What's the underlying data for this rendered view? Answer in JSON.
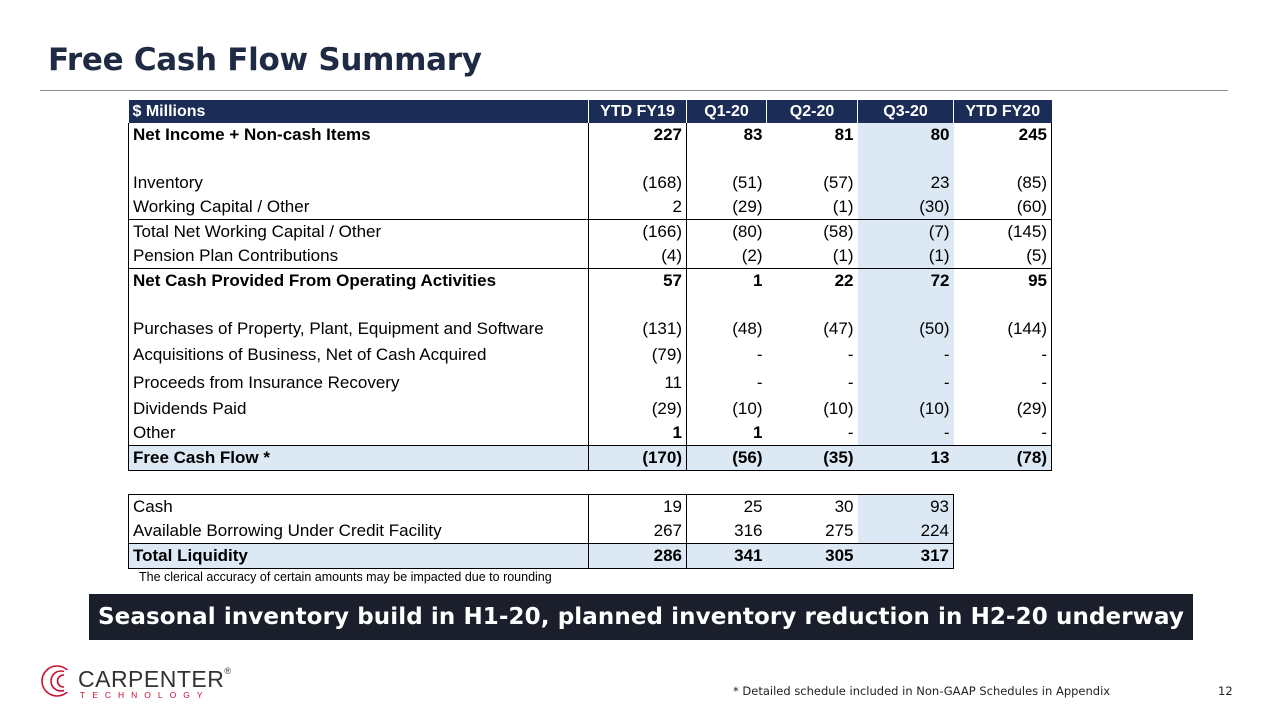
{
  "title": "Free Cash Flow Summary",
  "table": {
    "header": [
      "$ Millions",
      "YTD FY19",
      "Q1-20",
      "Q2-20",
      "Q3-20",
      "YTD FY20"
    ],
    "rows": [
      {
        "label": "Net Income + Non-cash Items",
        "values": [
          "227",
          "83",
          "81",
          "80",
          "245"
        ]
      },
      {
        "label": "Inventory",
        "values": [
          "(168)",
          "(51)",
          "(57)",
          "23",
          "(85)"
        ]
      },
      {
        "label": "Working Capital / Other",
        "values": [
          "2",
          "(29)",
          "(1)",
          "(30)",
          "(60)"
        ]
      },
      {
        "label": "Total Net Working Capital / Other",
        "values": [
          "(166)",
          "(80)",
          "(58)",
          "(7)",
          "(145)"
        ]
      },
      {
        "label": "Pension Plan Contributions",
        "values": [
          "(4)",
          "(2)",
          "(1)",
          "(1)",
          "(5)"
        ]
      },
      {
        "label": "Net Cash Provided From Operating Activities",
        "values": [
          "57",
          "1",
          "22",
          "72",
          "95"
        ]
      },
      {
        "label": "Purchases of Property, Plant, Equipment and Software",
        "values": [
          "(131)",
          "(48)",
          "(47)",
          "(50)",
          "(144)"
        ]
      },
      {
        "label": "Acquisitions of Business, Net of Cash Acquired",
        "values": [
          "(79)",
          "-",
          "-",
          "-",
          "-"
        ]
      },
      {
        "label": "Proceeds from Insurance Recovery",
        "values": [
          "11",
          "-",
          "-",
          "-",
          "-"
        ]
      },
      {
        "label": "Dividends Paid",
        "values": [
          "(29)",
          "(10)",
          "(10)",
          "(10)",
          "(29)"
        ]
      },
      {
        "label": "Other",
        "values": [
          "1",
          "1",
          "-",
          "-",
          "-"
        ]
      },
      {
        "label": "Free Cash Flow *",
        "values": [
          "(170)",
          "(56)",
          "(35)",
          "13",
          "(78)"
        ]
      }
    ]
  },
  "liquidity": {
    "rows": [
      {
        "label": "Cash",
        "values": [
          "19",
          "25",
          "30",
          "93"
        ]
      },
      {
        "label": "Available Borrowing Under Credit Facility",
        "values": [
          "267",
          "316",
          "275",
          "224"
        ]
      },
      {
        "label": "Total Liquidity",
        "values": [
          "286",
          "341",
          "305",
          "317"
        ]
      }
    ]
  },
  "rounding_note": "The clerical accuracy of certain amounts may be impacted due to rounding",
  "banner": "Seasonal inventory build in H1-20, planned inventory reduction in H2-20 underway",
  "logo": {
    "name": "CARPENTER",
    "registered": "®",
    "sub": "TECHNOLOGY"
  },
  "footnote": "* Detailed schedule included in Non-GAAP Schedules in Appendix",
  "page_number": "12",
  "colors": {
    "header_bg": "#1b2c57",
    "highlight": "#dce9f5",
    "banner_bg": "#1a1f2b",
    "brand_red": "#c8102e"
  }
}
